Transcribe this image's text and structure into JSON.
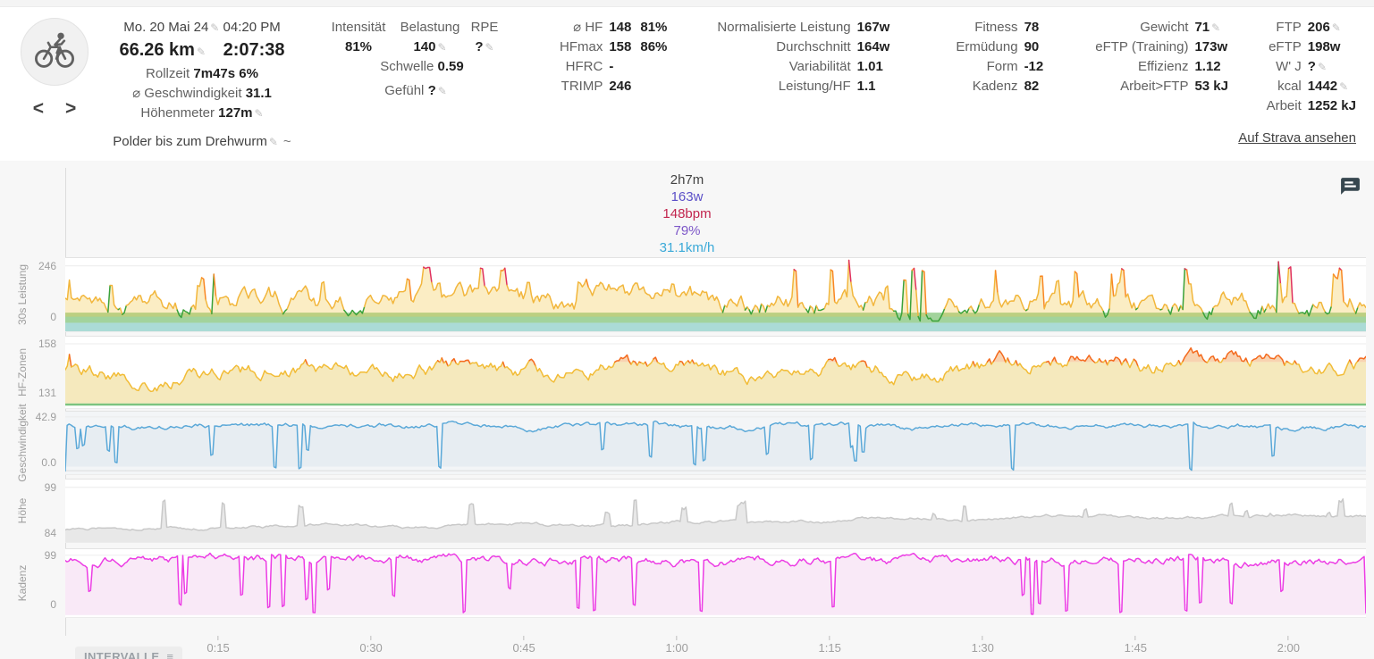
{
  "header": {
    "date": "Mo. 20 Mai 24",
    "time": "04:20 PM",
    "distance": "66.26 km",
    "duration": "2:07:38",
    "rollzeit_label": "Rollzeit",
    "rollzeit_value": "7m47s",
    "rollzeit_pct": "6%",
    "avg_speed_label": "⌀ Geschwindigkeit",
    "avg_speed_value": "31.1",
    "hoehenmeter_label": "Höhenmeter",
    "hoehenmeter_value": "127m",
    "title": "Polder bis zum Drehwurm",
    "title_suffix": "~"
  },
  "intensity": {
    "h1": "Intensität",
    "h2": "Belastung",
    "h3": "RPE",
    "v1": "81%",
    "v2": "140",
    "v3": "?",
    "schwelle_label": "Schwelle",
    "schwelle_value": "0.59",
    "gefuehl_label": "Gefühl",
    "gefuehl_value": "?"
  },
  "hf": {
    "rows": [
      {
        "label": "⌀ HF",
        "value": "148",
        "pct": "81%"
      },
      {
        "label": "HFmax",
        "value": "158",
        "pct": "86%"
      },
      {
        "label": "HFRC",
        "value": "-",
        "pct": ""
      },
      {
        "label": "TRIMP",
        "value": "246",
        "pct": ""
      }
    ]
  },
  "leistung": {
    "rows": [
      {
        "label": "Normalisierte Leistung",
        "value": "167w"
      },
      {
        "label": "Durchschnitt",
        "value": "164w"
      },
      {
        "label": "Variabilität",
        "value": "1.01"
      },
      {
        "label": "Leistung/HF",
        "value": "1.1"
      }
    ]
  },
  "fitness": {
    "rows": [
      {
        "label": "Fitness",
        "value": "78"
      },
      {
        "label": "Ermüdung",
        "value": "90"
      },
      {
        "label": "Form",
        "value": "-12"
      },
      {
        "label": "Kadenz",
        "value": "82"
      }
    ]
  },
  "training": {
    "rows": [
      {
        "label": "Gewicht",
        "value": "71"
      },
      {
        "label": "eFTP (Training)",
        "value": "173w"
      },
      {
        "label": "Effizienz",
        "value": "1.12"
      },
      {
        "label": "Arbeit>FTP",
        "value": "53 kJ"
      }
    ]
  },
  "ftpcol": {
    "rows": [
      {
        "label": "FTP",
        "value": "206"
      },
      {
        "label": "eFTP",
        "value": "198w"
      },
      {
        "label": "W' J",
        "value": "?"
      },
      {
        "label": "kcal",
        "value": "1442"
      },
      {
        "label": "Arbeit",
        "value": "1252 kJ"
      }
    ],
    "strava": "Auf Strava ansehen"
  },
  "tooltip": {
    "time": "2h7m",
    "lines": [
      {
        "text": "163w",
        "color": "#5b4fc8"
      },
      {
        "text": "148bpm",
        "color": "#c2254e"
      },
      {
        "text": "79%",
        "color": "#7d57c8"
      },
      {
        "text": "31.1km/h",
        "color": "#3aa9d8"
      }
    ]
  },
  "intervals_label": "INTERVALLE",
  "chart_data": {
    "type": "line",
    "subtype": "multi-panel stacked activity streams",
    "duration_label": "2h7m",
    "xaxis": {
      "labels": [
        "0:15",
        "0:30",
        "0:45",
        "1:00",
        "1:15",
        "1:30",
        "1:45",
        "2:00"
      ],
      "tick_min": [
        15,
        30,
        45,
        60,
        75,
        90,
        105,
        120
      ],
      "duration_min": 127.6
    },
    "summary": {
      "avg_power_w": 164,
      "normalized_power_w": 167,
      "max_power_tick": 246,
      "avg_hr_bpm": 148,
      "max_hr_bpm": 158,
      "hr_tick_low": 131,
      "avg_speed_kmh": 31.1,
      "speed_tick_max": 42.9,
      "elevation_low_m": 84,
      "elevation_high_m": 99,
      "avg_cadence_rpm": 82,
      "cadence_tick_max": 99
    },
    "panels": [
      {
        "kind": "power",
        "label": "30s Leistung",
        "yticks": [
          {
            "label": "246",
            "pos": 0.107
          },
          {
            "label": "0",
            "pos": 0.8
          }
        ],
        "bands": [
          {
            "color": "#a2d39c",
            "from": 0.745,
            "to": 0.885
          },
          {
            "color": "#abdbd6",
            "from": 0.885,
            "to": 1.0
          }
        ],
        "thresholds": {
          "red": 0.16,
          "orange": 0.3,
          "green": 0.7
        },
        "colors": {
          "green": "#3aa23a",
          "yellow": "#f2b63c",
          "orange": "#f98723",
          "red": "#e0315f",
          "fill": "rgba(244,200,70,0.32)"
        },
        "fillBase": 0.8,
        "gen": {
          "seed": 11,
          "n": 640,
          "base": 0.6,
          "drift": 0,
          "wave": 0.05,
          "jitter": 0.22,
          "clampMin": 0.04,
          "clampMax": 0.86,
          "spikeP": 0.04,
          "spikeLo": 0.12,
          "spikeHi": 0.42,
          "spikeLen": 1,
          "bigSpikes": [
            {
              "t": 0.003,
              "y": 0.3
            },
            {
              "t": 0.115,
              "y": 0.22
            },
            {
              "t": 0.335,
              "y": 0.17
            },
            {
              "t": 0.602,
              "y": 0.03
            },
            {
              "t": 0.652,
              "y": 0.14
            },
            {
              "t": 0.715,
              "y": 0.17
            },
            {
              "t": 0.805,
              "y": 0.22
            },
            {
              "t": 0.932,
              "y": 0.05
            },
            {
              "t": 0.975,
              "y": 0.22
            }
          ]
        }
      },
      {
        "kind": "hr",
        "label": "HF-Zonen",
        "yticks": [
          {
            "label": "158",
            "pos": 0.1
          },
          {
            "label": "131",
            "pos": 0.79
          }
        ],
        "thresh": 0.355,
        "colors": {
          "yellow": "#f2bc36",
          "orange": "#f46a1e",
          "yellowFill": "#f5e9bd",
          "orangeFill": "#f8d2b0"
        },
        "greenStrip": {
          "pos": 0.935,
          "h": 0.03,
          "color": "#7cc47f"
        },
        "fillBase": 0.935,
        "gen": {
          "seed": 23,
          "n": 640,
          "base": 0.54,
          "drift": -0.17,
          "wave": 0.055,
          "jitter": 0.16,
          "clampMin": 0.07,
          "clampMax": 0.86,
          "spikeP": 0,
          "spikeLo": 0,
          "spikeHi": 0,
          "spikeLen": 1,
          "bigSpikes": [
            {
              "t": 0.003,
              "y": 0.25
            }
          ]
        }
      },
      {
        "kind": "simple",
        "label": "Geschwindigkeit",
        "yticks": [
          {
            "label": "42.9",
            "pos": 0.083
          },
          {
            "label": "0.0",
            "pos": 0.81
          }
        ],
        "colors": {
          "line": "#5aa8d8",
          "fill": "#e7edf2"
        },
        "panelBg": "#f3f5f7",
        "baseline": {
          "pos": 0.945,
          "color": "#dcdcdc"
        },
        "fillBase": 0.88,
        "gen": {
          "seed": 5,
          "n": 680,
          "base": 0.235,
          "drift": 0,
          "wave": 0.018,
          "jitter": 0.06,
          "clampMin": 0.15,
          "clampMax": 0.95,
          "spikeP": 0.03,
          "spikeLo": 0.45,
          "spikeHi": 0.92,
          "spikeLen": 1,
          "startY": 0.95,
          "bigSpikes": []
        }
      },
      {
        "kind": "simple",
        "label": "Höhe",
        "yticks": [
          {
            "label": "99",
            "pos": 0.125
          },
          {
            "label": "84",
            "pos": 0.86
          }
        ],
        "colors": {
          "line": "#c8c8c8",
          "fill": "#e8e8e8"
        },
        "fillBase": 1.0,
        "gen": {
          "seed": 9,
          "n": 680,
          "base": 0.8,
          "drift": -0.24,
          "wave": 0.025,
          "jitter": 0.035,
          "clampMin": 0.18,
          "clampMax": 0.87,
          "spikeP": 0.02,
          "spikeLo": 0.33,
          "spikeHi": 0.58,
          "spikeLen": 2,
          "bigSpikes": []
        }
      },
      {
        "kind": "simple",
        "label": "Kadenz",
        "yticks": [
          {
            "label": "99",
            "pos": 0.09
          },
          {
            "label": "0",
            "pos": 0.82
          }
        ],
        "colors": {
          "line": "#ec3ce4",
          "fill": "#f9e9f7"
        },
        "fillBase": 0.97,
        "gen": {
          "seed": 31,
          "n": 720,
          "base": 0.155,
          "drift": 0,
          "wave": 0.012,
          "jitter": 0.09,
          "clampMin": 0.04,
          "clampMax": 0.96,
          "spikeP": 0.045,
          "spikeLo": 0.55,
          "spikeHi": 0.96,
          "spikeLen": 1,
          "endY": 0.94,
          "bigSpikes": []
        }
      }
    ]
  }
}
